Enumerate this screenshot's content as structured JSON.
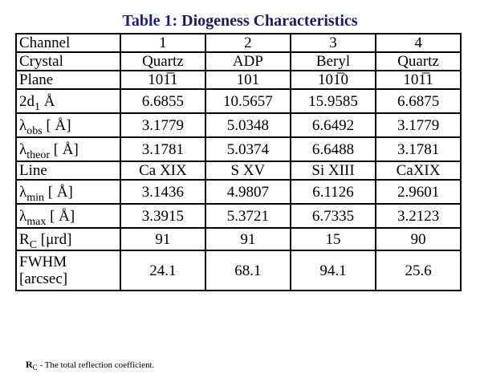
{
  "title": {
    "label": "Table 1:",
    "text": " Diogeness Characteristics"
  },
  "table": {
    "rows": [
      {
        "label": {
          "main": "Channel"
        },
        "cells": [
          "1",
          "2",
          "3",
          "4"
        ]
      },
      {
        "label": {
          "main": "Crystal"
        },
        "cells": [
          "Quartz",
          "ADP",
          "Beryl",
          "Quartz"
        ]
      },
      {
        "label": {
          "main": "Plane"
        },
        "cells": [
          "101̅1",
          "101",
          "101̅0",
          "101̅1"
        ]
      },
      {
        "label": {
          "main": "2d",
          "sub": "1",
          "after": " Å"
        },
        "cells": [
          "6.6855",
          "10.5657",
          "15.9585",
          "6.6875"
        ]
      },
      {
        "label": {
          "main": "λ",
          "sub": "obs",
          "after": " [ Å]"
        },
        "cells": [
          "3.1779",
          "5.0348",
          "6.6492",
          "3.1779"
        ]
      },
      {
        "label": {
          "main": "λ",
          "sub": "theor",
          "after": " [ Å]"
        },
        "cells": [
          "3.1781",
          "5.0374",
          "6.6488",
          "3.1781"
        ]
      },
      {
        "label": {
          "main": "Line"
        },
        "cells": [
          "Ca XIX",
          "S XV",
          "Si XIII",
          "CaXIX"
        ]
      },
      {
        "label": {
          "main": "λ",
          "sub": "min",
          "after": " [ Å]"
        },
        "cells": [
          "3.1436",
          "4.9807",
          "6.1126",
          "2.9601"
        ]
      },
      {
        "label": {
          "main": "λ",
          "sub": "max",
          "after": " [ Å]"
        },
        "cells": [
          "3.3915",
          "5.3721",
          "6.7335",
          "3.2123"
        ]
      },
      {
        "label": {
          "main": "R",
          "sub": "C",
          "after": " [μrd]"
        },
        "cells": [
          "91",
          "91",
          "15",
          "90"
        ]
      },
      {
        "label": {
          "main": "FWHM",
          "line2": "[arcsec]"
        },
        "cells": [
          "24.1",
          "68.1",
          "94.1",
          "25.6"
        ]
      }
    ]
  },
  "footnote": {
    "main": "R",
    "sub": "C",
    "after": " - The total reflection coefficient."
  }
}
